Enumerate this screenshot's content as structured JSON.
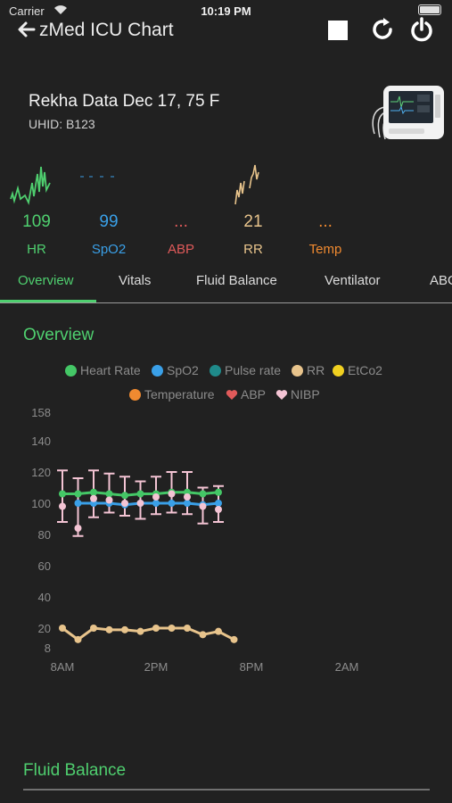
{
  "status_bar": {
    "carrier": "Carrier",
    "time": "10:19 PM"
  },
  "header": {
    "title": "zMed ICU Chart"
  },
  "patient": {
    "name": "Rekha Data Dec 17, 75 F",
    "uhid": "UHID: B123"
  },
  "vitals": [
    {
      "value": "109",
      "label": "HR",
      "color": "#4fcf6f"
    },
    {
      "value": "99",
      "label": "SpO2",
      "color": "#3aa0e8"
    },
    {
      "value": "...",
      "label": "ABP",
      "color": "#e05a5a"
    },
    {
      "value": "21",
      "label": "RR",
      "color": "#e8c48c"
    },
    {
      "value": "...",
      "label": "Temp",
      "color": "#f08a30"
    }
  ],
  "tabs": [
    "Overview",
    "Vitals",
    "Fluid Balance",
    "Ventilator",
    "ABG"
  ],
  "overview_title": "Overview",
  "fluid_balance_title": "Fluid Balance",
  "colors": {
    "accent": "#4fcf6f",
    "background": "#212121"
  },
  "chart_data": {
    "type": "line",
    "legend": [
      {
        "name": "Heart Rate",
        "color": "#44c766",
        "marker": "dot"
      },
      {
        "name": "SpO2",
        "color": "#3aa0e8",
        "marker": "dot"
      },
      {
        "name": "Pulse rate",
        "color": "#1f8a8a",
        "marker": "dot"
      },
      {
        "name": "RR",
        "color": "#e8c48c",
        "marker": "dot"
      },
      {
        "name": "EtCo2",
        "color": "#f0d020",
        "marker": "dot"
      },
      {
        "name": "Temperature",
        "color": "#f08a30",
        "marker": "dot"
      },
      {
        "name": "ABP",
        "color": "#e05a5a",
        "marker": "heart"
      },
      {
        "name": "NIBP",
        "color": "#f4c4d4",
        "marker": "heart"
      }
    ],
    "y_ticks": [
      "158",
      "140",
      "120",
      "100",
      "80",
      "60",
      "40",
      "20",
      "8"
    ],
    "x_ticks": [
      "8AM",
      "2PM",
      "8PM",
      "2AM"
    ],
    "series": [
      {
        "name": "Heart Rate",
        "color": "#44c766",
        "x": [
          8.0,
          9.0,
          10.0,
          11.0,
          12.0,
          13.0,
          14.0,
          15.0,
          16.0,
          17.0,
          18.0
        ],
        "y": [
          106,
          106,
          107,
          106,
          105,
          106,
          106,
          107,
          107,
          106,
          107
        ]
      },
      {
        "name": "SpO2",
        "color": "#3aa0e8",
        "x": [
          9.0,
          10.0,
          11.0,
          12.0,
          13.0,
          14.0,
          15.0,
          16.0,
          17.0,
          18.0
        ],
        "y": [
          100,
          100,
          100,
          99,
          100,
          100,
          100,
          100,
          99,
          100
        ]
      },
      {
        "name": "RR",
        "color": "#e8c48c",
        "x": [
          8.0,
          9.0,
          10.0,
          11.0,
          12.0,
          13.0,
          14.0,
          15.0,
          16.0,
          17.0,
          18.0,
          19.0
        ],
        "y": [
          20,
          13,
          20,
          19,
          19,
          18,
          20,
          20,
          20,
          16,
          18,
          13
        ]
      },
      {
        "name": "NIBP",
        "color": "#f4c4d4",
        "x": [
          8.0,
          9.0,
          10.0,
          11.0,
          12.0,
          13.0,
          14.0,
          15.0,
          16.0,
          17.0,
          18.0
        ],
        "high": [
          121,
          116,
          121,
          119,
          117,
          114,
          117,
          120,
          120,
          110,
          111
        ],
        "low": [
          88,
          79,
          91,
          94,
          92,
          90,
          93,
          94,
          93,
          87,
          88
        ],
        "mid": [
          98,
          84,
          103,
          102,
          100,
          100,
          104,
          106,
          104,
          98,
          96
        ]
      }
    ]
  }
}
